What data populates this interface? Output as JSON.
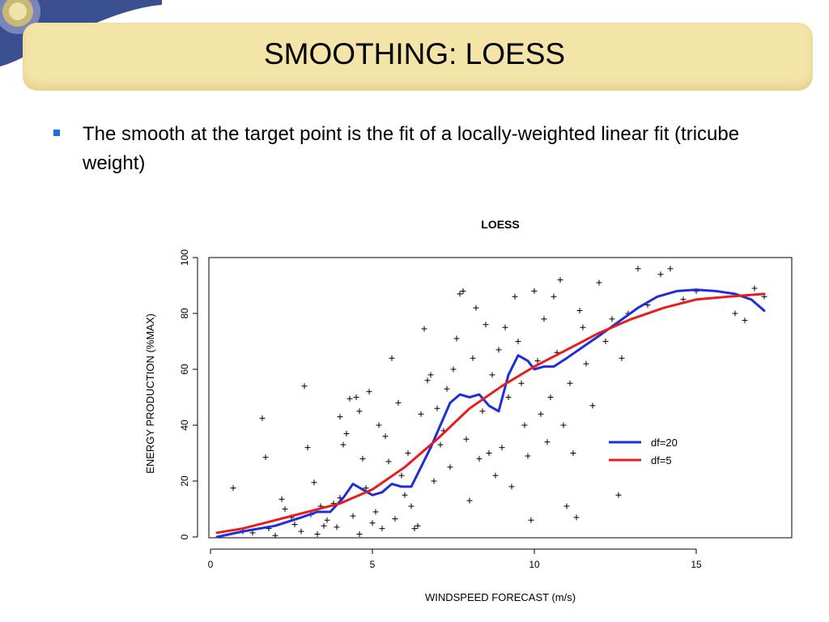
{
  "slide": {
    "title": "SMOOTHING: LOESS",
    "bullet": "The smooth at the target point is the fit of a locally-weighted linear fit (tricube weight)"
  },
  "chart_data": {
    "type": "scatter",
    "title": "LOESS",
    "xlabel": "WINDSPEED FORECAST (m/s)",
    "ylabel": "ENERGY PRODUCTION (%MAX)",
    "xlim": [
      0,
      18
    ],
    "ylim": [
      0,
      100
    ],
    "xticks": [
      0,
      5,
      10,
      15
    ],
    "yticks": [
      0,
      20,
      40,
      60,
      80,
      100
    ],
    "grid": false,
    "legend_position": "right",
    "points": [
      [
        0.7,
        17.5
      ],
      [
        1.6,
        42.5
      ],
      [
        1.7,
        28.5
      ],
      [
        2.2,
        13.5
      ],
      [
        2.3,
        10
      ],
      [
        2.5,
        7
      ],
      [
        2.9,
        54
      ],
      [
        3.0,
        32
      ],
      [
        3.2,
        19.5
      ],
      [
        3.5,
        4
      ],
      [
        3.8,
        12
      ],
      [
        4.0,
        43
      ],
      [
        4.1,
        33
      ],
      [
        4.2,
        37
      ],
      [
        4.3,
        49.5
      ],
      [
        4.5,
        50
      ],
      [
        4.6,
        45
      ],
      [
        4.7,
        28
      ],
      [
        4.8,
        17.5
      ],
      [
        4.9,
        52
      ],
      [
        5.0,
        5
      ],
      [
        5.2,
        40
      ],
      [
        5.4,
        36
      ],
      [
        5.5,
        27
      ],
      [
        5.6,
        64
      ],
      [
        5.8,
        48
      ],
      [
        5.9,
        22
      ],
      [
        6.0,
        15
      ],
      [
        6.1,
        30
      ],
      [
        6.2,
        11
      ],
      [
        6.3,
        3
      ],
      [
        6.5,
        44
      ],
      [
        6.6,
        74.5
      ],
      [
        6.7,
        56
      ],
      [
        6.8,
        58
      ],
      [
        6.9,
        20
      ],
      [
        7.0,
        46
      ],
      [
        7.1,
        33
      ],
      [
        7.2,
        38
      ],
      [
        7.3,
        53
      ],
      [
        7.4,
        25
      ],
      [
        7.5,
        60
      ],
      [
        7.6,
        71
      ],
      [
        7.7,
        87
      ],
      [
        7.8,
        88
      ],
      [
        7.9,
        35
      ],
      [
        8.0,
        13
      ],
      [
        8.1,
        64
      ],
      [
        8.2,
        82
      ],
      [
        8.3,
        28
      ],
      [
        8.4,
        45
      ],
      [
        8.5,
        76
      ],
      [
        8.6,
        30
      ],
      [
        8.7,
        58
      ],
      [
        8.8,
        22
      ],
      [
        8.9,
        67
      ],
      [
        9.0,
        32
      ],
      [
        9.1,
        75
      ],
      [
        9.2,
        50
      ],
      [
        9.3,
        18
      ],
      [
        9.4,
        86
      ],
      [
        9.5,
        70
      ],
      [
        9.6,
        55
      ],
      [
        9.7,
        40
      ],
      [
        9.8,
        29
      ],
      [
        9.9,
        6
      ],
      [
        10.0,
        88
      ],
      [
        10.1,
        63
      ],
      [
        10.2,
        44
      ],
      [
        10.3,
        78
      ],
      [
        10.4,
        34
      ],
      [
        10.5,
        50
      ],
      [
        10.6,
        86
      ],
      [
        10.7,
        66
      ],
      [
        10.8,
        92
      ],
      [
        10.9,
        40
      ],
      [
        11.0,
        11
      ],
      [
        11.1,
        55
      ],
      [
        11.2,
        30
      ],
      [
        11.3,
        7
      ],
      [
        11.4,
        81
      ],
      [
        11.5,
        75
      ],
      [
        11.6,
        62
      ],
      [
        11.8,
        47
      ],
      [
        12.0,
        91
      ],
      [
        12.2,
        70
      ],
      [
        12.4,
        78
      ],
      [
        12.6,
        15
      ],
      [
        12.7,
        64
      ],
      [
        12.9,
        80
      ],
      [
        13.2,
        96
      ],
      [
        13.5,
        83
      ],
      [
        13.9,
        94
      ],
      [
        14.2,
        96
      ],
      [
        14.6,
        85
      ],
      [
        15.0,
        88
      ],
      [
        16.2,
        80
      ],
      [
        16.5,
        77.5
      ],
      [
        16.8,
        89
      ],
      [
        17.1,
        86
      ],
      [
        1.0,
        2
      ],
      [
        1.3,
        1.5
      ],
      [
        1.8,
        3
      ],
      [
        2.0,
        0.5
      ],
      [
        2.6,
        4.5
      ],
      [
        2.8,
        2
      ],
      [
        3.1,
        8
      ],
      [
        3.3,
        1
      ],
      [
        3.6,
        6
      ],
      [
        3.9,
        3.5
      ],
      [
        4.4,
        7.5
      ],
      [
        4.6,
        1
      ],
      [
        5.1,
        9
      ],
      [
        5.3,
        3
      ],
      [
        5.7,
        6.5
      ],
      [
        6.4,
        4
      ],
      [
        3.4,
        11
      ],
      [
        4.0,
        14
      ]
    ],
    "series": [
      {
        "name": "df=20",
        "color": "#1e2fd9",
        "x": [
          0.2,
          1,
          2,
          2.8,
          3.3,
          3.7,
          4.1,
          4.4,
          4.7,
          5.0,
          5.3,
          5.6,
          5.9,
          6.2,
          6.5,
          6.8,
          7.1,
          7.4,
          7.7,
          8.0,
          8.3,
          8.6,
          8.9,
          9.2,
          9.5,
          9.8,
          10.0,
          10.3,
          10.6,
          11.0,
          11.5,
          12.0,
          12.6,
          13.2,
          13.8,
          14.4,
          15.0,
          15.6,
          16.2,
          16.7,
          17.1
        ],
        "y": [
          0,
          2,
          4,
          7,
          9,
          9,
          14,
          19,
          17,
          15,
          16,
          19,
          18,
          18,
          25,
          32,
          40,
          48,
          51,
          50,
          51,
          47,
          45,
          58,
          65,
          63,
          60,
          61,
          61,
          64,
          68,
          72,
          77,
          82,
          86,
          88,
          88.5,
          88,
          87,
          85,
          81
        ]
      },
      {
        "name": "df=5",
        "color": "#e81c1c",
        "x": [
          0.2,
          1,
          2,
          3,
          4,
          5,
          6,
          7,
          8,
          9,
          10,
          11,
          12,
          13,
          14,
          15,
          16,
          17.1
        ],
        "y": [
          1.5,
          3,
          6,
          9,
          12,
          17,
          25,
          35,
          46,
          54,
          61,
          67,
          73,
          78,
          82,
          85,
          86,
          87
        ]
      }
    ]
  }
}
